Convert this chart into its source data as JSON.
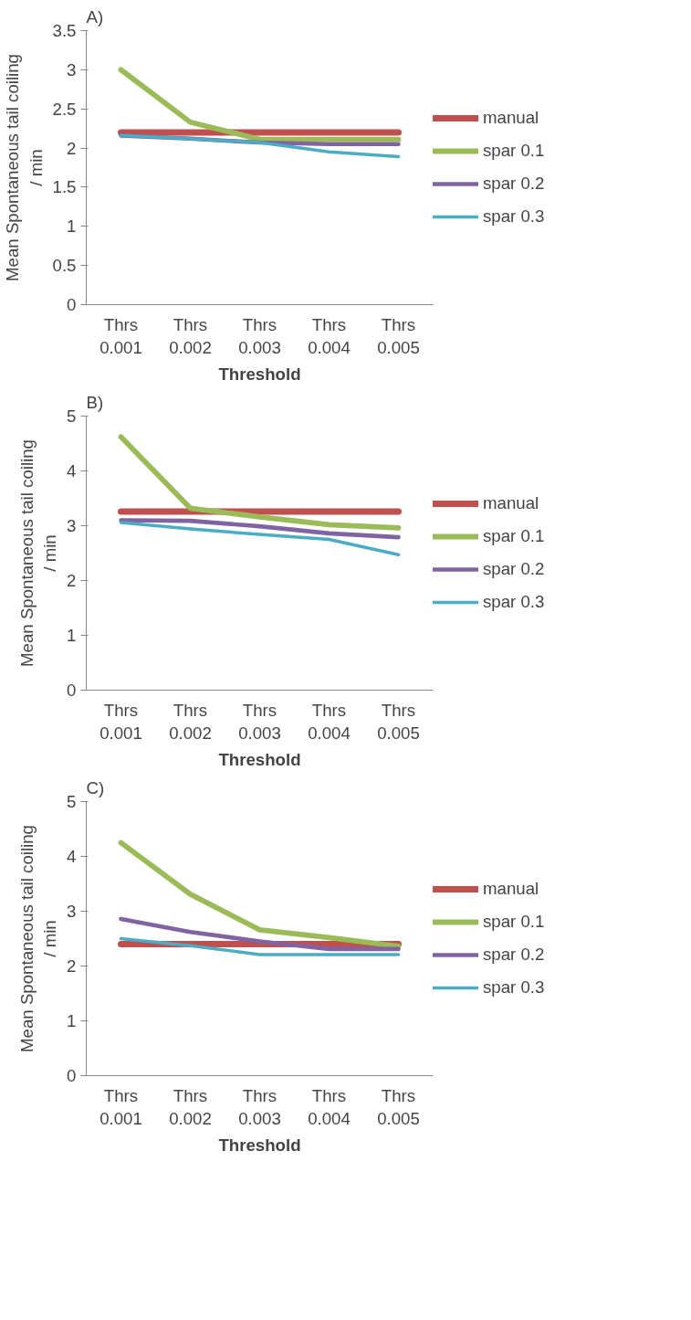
{
  "chart_data": [
    {
      "type": "line",
      "title": "A)",
      "xlabel": "Threshold",
      "ylabel": "Mean Spontaneous tail coiling / min",
      "categories": [
        "Thrs 0.001",
        "Thrs 0.002",
        "Thrs 0.003",
        "Thrs 0.004",
        "Thrs 0.005"
      ],
      "ylim": [
        0,
        3.5
      ],
      "yticks": [
        0,
        0.5,
        1,
        1.5,
        2,
        2.5,
        3,
        3.5
      ],
      "grid": false,
      "legend": "right",
      "marker": "none",
      "line_style": "solid",
      "series": [
        {
          "name": "manual",
          "color": "#c0504d",
          "values": [
            2.2,
            2.2,
            2.2,
            2.2,
            2.2
          ]
        },
        {
          "name": "spar 0.1",
          "color": "#9bbb59",
          "values": [
            3.0,
            2.33,
            2.11,
            2.11,
            2.11
          ]
        },
        {
          "name": "spar 0.2",
          "color": "#8064a2",
          "values": [
            2.16,
            2.12,
            2.07,
            2.05,
            2.05
          ]
        },
        {
          "name": "spar 0.3",
          "color": "#4bacc6",
          "values": [
            2.16,
            2.12,
            2.07,
            1.95,
            1.89
          ]
        }
      ]
    },
    {
      "type": "line",
      "title": "B)",
      "xlabel": "Threshold",
      "ylabel": "Mean Spontaneous tail coiling / min",
      "categories": [
        "Thrs 0.001",
        "Thrs 0.002",
        "Thrs 0.003",
        "Thrs 0.004",
        "Thrs 0.005"
      ],
      "ylim": [
        0,
        5
      ],
      "yticks": [
        0,
        1,
        2,
        3,
        4,
        5
      ],
      "grid": false,
      "legend": "right",
      "marker": "none",
      "line_style": "solid",
      "series": [
        {
          "name": "manual",
          "color": "#c0504d",
          "values": [
            3.26,
            3.26,
            3.26,
            3.26,
            3.26
          ]
        },
        {
          "name": "spar 0.1",
          "color": "#9bbb59",
          "values": [
            4.62,
            3.32,
            3.16,
            3.02,
            2.96
          ]
        },
        {
          "name": "spar 0.2",
          "color": "#8064a2",
          "values": [
            3.1,
            3.09,
            2.99,
            2.86,
            2.79
          ]
        },
        {
          "name": "spar 0.3",
          "color": "#4bacc6",
          "values": [
            3.06,
            2.94,
            2.84,
            2.75,
            2.47
          ]
        }
      ]
    },
    {
      "type": "line",
      "title": "C)",
      "xlabel": "Threshold",
      "ylabel": "Mean Spontaneous tail coiling / min",
      "categories": [
        "Thrs 0.001",
        "Thrs 0.002",
        "Thrs 0.003",
        "Thrs 0.004",
        "Thrs 0.005"
      ],
      "ylim": [
        0,
        5
      ],
      "yticks": [
        0,
        1,
        2,
        3,
        4,
        5
      ],
      "grid": false,
      "legend": "right",
      "marker": "none",
      "line_style": "solid",
      "series": [
        {
          "name": "manual",
          "color": "#c0504d",
          "values": [
            2.4,
            2.4,
            2.4,
            2.4,
            2.4
          ]
        },
        {
          "name": "spar 0.1",
          "color": "#9bbb59",
          "values": [
            4.25,
            3.31,
            2.66,
            2.52,
            2.36
          ]
        },
        {
          "name": "spar 0.2",
          "color": "#8064a2",
          "values": [
            2.86,
            2.62,
            2.45,
            2.31,
            2.31
          ]
        },
        {
          "name": "spar 0.3",
          "color": "#4bacc6",
          "values": [
            2.5,
            2.37,
            2.21,
            2.21,
            2.21
          ]
        }
      ]
    }
  ]
}
